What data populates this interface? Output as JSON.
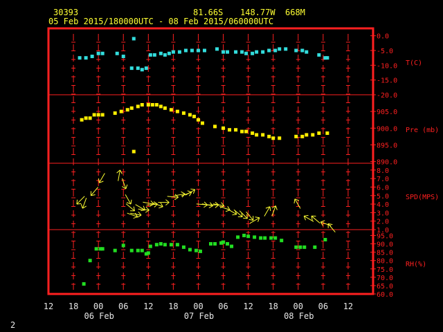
{
  "header": {
    "station": "30393",
    "lat": "81.66S",
    "lon": "148.77W",
    "elev": "668M",
    "range": "05 Feb 2015/180000UTC - 08 Feb 2015/060000UTC"
  },
  "footer": {
    "page": "2"
  },
  "colors": {
    "frame": "#ff2020",
    "temp": "#33dddd",
    "pres": "#ffee00",
    "wind": "#ffff33",
    "rh": "#22dd22",
    "label": "#ffff33"
  },
  "chart_data": {
    "type": "scatter",
    "x_axis": {
      "unit": "hours",
      "range": [
        -12,
        66
      ],
      "ticks": [
        {
          "x": -12,
          "label": "12"
        },
        {
          "x": -6,
          "label": "18"
        },
        {
          "x": 0,
          "label": "00"
        },
        {
          "x": 6,
          "label": "06"
        },
        {
          "x": 12,
          "label": "12"
        },
        {
          "x": 18,
          "label": "18"
        },
        {
          "x": 24,
          "label": "00"
        },
        {
          "x": 30,
          "label": "06"
        },
        {
          "x": 36,
          "label": "12"
        },
        {
          "x": 42,
          "label": "18"
        },
        {
          "x": 48,
          "label": "00"
        },
        {
          "x": 54,
          "label": "06"
        },
        {
          "x": 60,
          "label": "12"
        }
      ],
      "day_labels": [
        {
          "x": 0,
          "label": "06 Feb"
        },
        {
          "x": 24,
          "label": "07 Feb"
        },
        {
          "x": 48,
          "label": "08 Feb"
        }
      ]
    },
    "panels": [
      {
        "name": "T(C)",
        "ticks": [
          "0.0",
          "-5.0",
          "-10.0",
          "-15.0",
          "-20.0"
        ],
        "tick_values": [
          0,
          -5,
          -10,
          -15,
          -20
        ],
        "ylim": [
          -20,
          2.5
        ],
        "series": [
          {
            "x": -4.5,
            "y": -7.5
          },
          {
            "x": -3,
            "y": -7.5
          },
          {
            "x": -1.5,
            "y": -7
          },
          {
            "x": 0,
            "y": -6
          },
          {
            "x": 1,
            "y": -6
          },
          {
            "x": 4.5,
            "y": -6
          },
          {
            "x": 6,
            "y": -7
          },
          {
            "x": 8,
            "y": -11
          },
          {
            "x": 8.5,
            "y": -1
          },
          {
            "x": 9.5,
            "y": -11
          },
          {
            "x": 10.5,
            "y": -11.5
          },
          {
            "x": 11.5,
            "y": -11
          },
          {
            "x": 12.5,
            "y": -6.5
          },
          {
            "x": 13.5,
            "y": -6.5
          },
          {
            "x": 15,
            "y": -6
          },
          {
            "x": 16,
            "y": -6.5
          },
          {
            "x": 17,
            "y": -6
          },
          {
            "x": 18,
            "y": -5.5
          },
          {
            "x": 19.5,
            "y": -5.5
          },
          {
            "x": 21,
            "y": -5
          },
          {
            "x": 22.5,
            "y": -5
          },
          {
            "x": 24,
            "y": -5
          },
          {
            "x": 25.5,
            "y": -5
          },
          {
            "x": 28.5,
            "y": -4.5
          },
          {
            "x": 30,
            "y": -5.5
          },
          {
            "x": 31,
            "y": -5.5
          },
          {
            "x": 33,
            "y": -5.5
          },
          {
            "x": 34.5,
            "y": -5.5
          },
          {
            "x": 35.5,
            "y": -6
          },
          {
            "x": 37,
            "y": -6
          },
          {
            "x": 38,
            "y": -5.5
          },
          {
            "x": 39.5,
            "y": -5.5
          },
          {
            "x": 41,
            "y": -5
          },
          {
            "x": 42.5,
            "y": -5
          },
          {
            "x": 43.5,
            "y": -4.5
          },
          {
            "x": 45,
            "y": -4.5
          },
          {
            "x": 47.5,
            "y": -5
          },
          {
            "x": 49,
            "y": -5
          },
          {
            "x": 50,
            "y": -5.5
          },
          {
            "x": 53,
            "y": -6.5
          },
          {
            "x": 54.5,
            "y": -7.5
          },
          {
            "x": 55,
            "y": -7.5
          }
        ]
      },
      {
        "name": "Pre (mb)",
        "ticks": [
          "905.0",
          "900.0",
          "895.0",
          "890.0"
        ],
        "tick_values": [
          905,
          900,
          895,
          890
        ],
        "ylim": [
          889.5,
          910
        ],
        "series": [
          {
            "x": -4,
            "y": 902.5
          },
          {
            "x": -3,
            "y": 903
          },
          {
            "x": -2,
            "y": 903
          },
          {
            "x": -1,
            "y": 904
          },
          {
            "x": 0,
            "y": 904
          },
          {
            "x": 1,
            "y": 904
          },
          {
            "x": 4,
            "y": 904.5
          },
          {
            "x": 5.5,
            "y": 905
          },
          {
            "x": 7,
            "y": 905.5
          },
          {
            "x": 8,
            "y": 906
          },
          {
            "x": 8.5,
            "y": 893
          },
          {
            "x": 9.5,
            "y": 906.5
          },
          {
            "x": 10.5,
            "y": 907
          },
          {
            "x": 12,
            "y": 907
          },
          {
            "x": 13,
            "y": 907
          },
          {
            "x": 14,
            "y": 907
          },
          {
            "x": 15,
            "y": 906.5
          },
          {
            "x": 16,
            "y": 906
          },
          {
            "x": 17.5,
            "y": 905.5
          },
          {
            "x": 19,
            "y": 905
          },
          {
            "x": 20.5,
            "y": 904.5
          },
          {
            "x": 22,
            "y": 904
          },
          {
            "x": 23,
            "y": 903.5
          },
          {
            "x": 24,
            "y": 902.5
          },
          {
            "x": 25,
            "y": 901.5
          },
          {
            "x": 28,
            "y": 900.5
          },
          {
            "x": 30,
            "y": 900
          },
          {
            "x": 31.5,
            "y": 899.5
          },
          {
            "x": 33,
            "y": 899.5
          },
          {
            "x": 34.5,
            "y": 899
          },
          {
            "x": 35.5,
            "y": 899
          },
          {
            "x": 37,
            "y": 898.5
          },
          {
            "x": 38,
            "y": 898
          },
          {
            "x": 39.5,
            "y": 898
          },
          {
            "x": 41,
            "y": 897.5
          },
          {
            "x": 42,
            "y": 897
          },
          {
            "x": 43.5,
            "y": 897
          },
          {
            "x": 47.5,
            "y": 897.5
          },
          {
            "x": 49,
            "y": 897.5
          },
          {
            "x": 50,
            "y": 898
          },
          {
            "x": 51.5,
            "y": 898
          },
          {
            "x": 53,
            "y": 898.5
          },
          {
            "x": 55,
            "y": 898.5
          }
        ]
      },
      {
        "name": "SPD(MPS)",
        "ticks": [
          "8.0",
          "7.0",
          "6.0",
          "5.0",
          "4.0",
          "3.0",
          "2.0",
          "1.0"
        ],
        "tick_values": [
          8,
          7,
          6,
          5,
          4,
          3,
          2,
          1
        ],
        "ylim": [
          1,
          8.8
        ],
        "barbs": [
          {
            "x": -5.2,
            "y": 4,
            "dir": 225
          },
          {
            "x": -3.8,
            "y": 3.5,
            "dir": 200
          },
          {
            "x": -1.8,
            "y": 5,
            "dir": 220
          },
          {
            "x": 0.2,
            "y": 6.5,
            "dir": 210
          },
          {
            "x": 5.2,
            "y": 8,
            "dir": 10
          },
          {
            "x": 6.6,
            "y": 5.8,
            "dir": 160
          },
          {
            "x": 7.8,
            "y": 4,
            "dir": 150
          },
          {
            "x": 8.7,
            "y": 3.2,
            "dir": 130
          },
          {
            "x": 9.4,
            "y": 2.5,
            "dir": 110
          },
          {
            "x": 10.3,
            "y": 2.7,
            "dir": 100
          },
          {
            "x": 11.2,
            "y": 3.3,
            "dir": 120
          },
          {
            "x": 12.2,
            "y": 3.3,
            "dir": 95
          },
          {
            "x": 13.3,
            "y": 4,
            "dir": 100
          },
          {
            "x": 14.2,
            "y": 4,
            "dir": 85
          },
          {
            "x": 15.5,
            "y": 3.7,
            "dir": 110
          },
          {
            "x": 17,
            "y": 4.2,
            "dir": 90
          },
          {
            "x": 19.2,
            "y": 4.8,
            "dir": 95
          },
          {
            "x": 20.8,
            "y": 5.2,
            "dir": 80
          },
          {
            "x": 22.4,
            "y": 5.4,
            "dir": 70
          },
          {
            "x": 23.2,
            "y": 5.7,
            "dir": 60
          },
          {
            "x": 26.2,
            "y": 3.9,
            "dir": 95
          },
          {
            "x": 27.5,
            "y": 3.8,
            "dir": 100
          },
          {
            "x": 28.9,
            "y": 3.9,
            "dir": 90
          },
          {
            "x": 30.2,
            "y": 3.8,
            "dir": 100
          },
          {
            "x": 31.6,
            "y": 3.3,
            "dir": 110
          },
          {
            "x": 33.2,
            "y": 2.8,
            "dir": 120
          },
          {
            "x": 34.6,
            "y": 2.5,
            "dir": 130
          },
          {
            "x": 35.8,
            "y": 2.3,
            "dir": 135
          },
          {
            "x": 37.2,
            "y": 2.1,
            "dir": 140
          },
          {
            "x": 38.7,
            "y": 2.4,
            "dir": 60
          },
          {
            "x": 41.2,
            "y": 3.7,
            "dir": 30
          },
          {
            "x": 42.6,
            "y": 3.8,
            "dir": 20
          },
          {
            "x": 47.2,
            "y": 4.6,
            "dir": 330
          },
          {
            "x": 49.4,
            "y": 2.6,
            "dir": 300
          },
          {
            "x": 51.2,
            "y": 2.6,
            "dir": 310
          },
          {
            "x": 53.4,
            "y": 1.9,
            "dir": 290
          },
          {
            "x": 55.2,
            "y": 1.7,
            "dir": 320
          }
        ]
      },
      {
        "name": "RH(%)",
        "ticks": [
          "95.0",
          "90.0",
          "85.0",
          "80.0",
          "75.0",
          "70.0",
          "65.0",
          "60.0"
        ],
        "tick_values": [
          95,
          90,
          85,
          80,
          75,
          70,
          65,
          60
        ],
        "ylim": [
          60,
          98.5
        ],
        "series": [
          {
            "x": -3.5,
            "y": 66
          },
          {
            "x": -2,
            "y": 80
          },
          {
            "x": -0.5,
            "y": 87
          },
          {
            "x": 0.5,
            "y": 87
          },
          {
            "x": 1,
            "y": 87
          },
          {
            "x": 4,
            "y": 86
          },
          {
            "x": 6,
            "y": 89
          },
          {
            "x": 8,
            "y": 86
          },
          {
            "x": 9.5,
            "y": 86
          },
          {
            "x": 10.5,
            "y": 86
          },
          {
            "x": 11.5,
            "y": 84
          },
          {
            "x": 12,
            "y": 84.5
          },
          {
            "x": 12.5,
            "y": 88.5
          },
          {
            "x": 14,
            "y": 89.5
          },
          {
            "x": 15,
            "y": 90
          },
          {
            "x": 16,
            "y": 89.5
          },
          {
            "x": 17.5,
            "y": 89.5
          },
          {
            "x": 19,
            "y": 89.5
          },
          {
            "x": 20.5,
            "y": 88
          },
          {
            "x": 22,
            "y": 86.5
          },
          {
            "x": 23.5,
            "y": 86
          },
          {
            "x": 24.5,
            "y": 85.5
          },
          {
            "x": 27,
            "y": 90
          },
          {
            "x": 28,
            "y": 90
          },
          {
            "x": 29.5,
            "y": 90.5
          },
          {
            "x": 30,
            "y": 91
          },
          {
            "x": 31,
            "y": 90
          },
          {
            "x": 32,
            "y": 88.5
          },
          {
            "x": 33.5,
            "y": 94
          },
          {
            "x": 35,
            "y": 95
          },
          {
            "x": 36,
            "y": 94.5
          },
          {
            "x": 37.5,
            "y": 94
          },
          {
            "x": 39,
            "y": 93.5
          },
          {
            "x": 40,
            "y": 93.5
          },
          {
            "x": 41.5,
            "y": 93.5
          },
          {
            "x": 42.5,
            "y": 93.5
          },
          {
            "x": 44,
            "y": 92
          },
          {
            "x": 47.5,
            "y": 88
          },
          {
            "x": 48.5,
            "y": 88
          },
          {
            "x": 49.5,
            "y": 88
          },
          {
            "x": 52,
            "y": 88
          },
          {
            "x": 54.5,
            "y": 92.5
          }
        ]
      }
    ]
  }
}
